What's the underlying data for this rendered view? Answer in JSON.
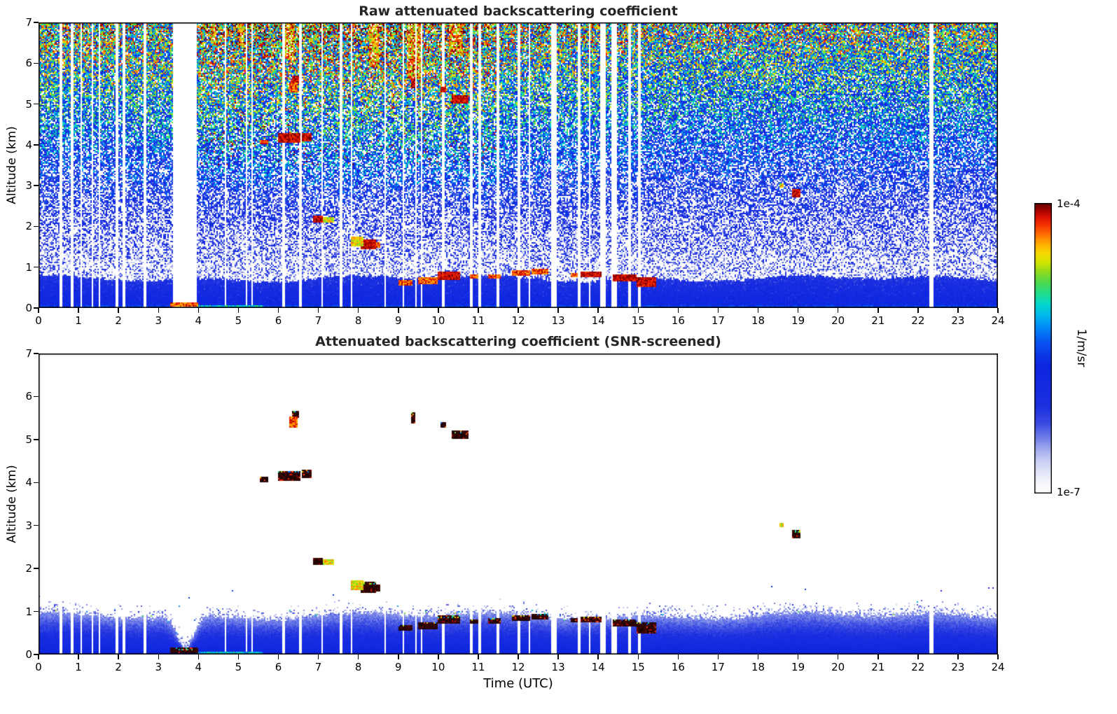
{
  "figure": {
    "background": "#ffffff",
    "title_color": "#262626",
    "text_color": "#000000"
  },
  "chart_data": {
    "type": "heatmap",
    "panels": [
      {
        "title": "Raw attenuated backscattering coefficient",
        "screened": false
      },
      {
        "title": "Attenuated backscattering coefficient (SNR-screened)",
        "screened": true
      }
    ],
    "x": {
      "label": "Time (UTC)",
      "range": [
        0,
        24
      ],
      "ticks": [
        0,
        1,
        2,
        3,
        4,
        5,
        6,
        7,
        8,
        9,
        10,
        11,
        12,
        13,
        14,
        15,
        16,
        17,
        18,
        19,
        20,
        21,
        22,
        23,
        24
      ]
    },
    "y": {
      "label": "Altitude (km)",
      "range": [
        0,
        7
      ],
      "ticks": [
        0,
        1,
        2,
        3,
        4,
        5,
        6,
        7
      ]
    },
    "colorbar": {
      "label": "1/m/sr",
      "scale": "log",
      "vmin_label": "1e-7",
      "vmax_label": "1e-4",
      "stops": [
        [
          0,
          "#ffffff"
        ],
        [
          0.03,
          "#f7f8fd"
        ],
        [
          0.07,
          "#e4e7f8"
        ],
        [
          0.11,
          "#cad0f4"
        ],
        [
          0.15,
          "#a5adee"
        ],
        [
          0.19,
          "#7280e8"
        ],
        [
          0.24,
          "#3b4ce2"
        ],
        [
          0.3,
          "#1c30e0"
        ],
        [
          0.44,
          "#0c25e0"
        ],
        [
          0.52,
          "#0a52f0"
        ],
        [
          0.57,
          "#0088f8"
        ],
        [
          0.61,
          "#00b5f0"
        ],
        [
          0.65,
          "#00d8d0"
        ],
        [
          0.69,
          "#23dc8a"
        ],
        [
          0.73,
          "#53d84a"
        ],
        [
          0.77,
          "#9bde18"
        ],
        [
          0.8,
          "#d9e400"
        ],
        [
          0.83,
          "#f8d800"
        ],
        [
          0.86,
          "#ffab00"
        ],
        [
          0.89,
          "#ff7300"
        ],
        [
          0.92,
          "#f83c00"
        ],
        [
          0.95,
          "#df1200"
        ],
        [
          0.975,
          "#a80400"
        ],
        [
          1,
          "#620000"
        ]
      ]
    },
    "boundary_layer": {
      "raw_top_km": 0.72,
      "screened_top_km": 0.9,
      "dip": {
        "t_center": 3.68,
        "depth_km": 0.72,
        "width_h": 0.3
      }
    },
    "cloud_features": [
      {
        "t0": 5.55,
        "t1": 5.75,
        "z0": 4.02,
        "z1": 4.12,
        "p": "hot",
        "s": "d"
      },
      {
        "t0": 5.98,
        "t1": 6.55,
        "z0": 4.05,
        "z1": 4.28,
        "p": "dark",
        "s": "d"
      },
      {
        "t0": 6.6,
        "t1": 6.82,
        "z0": 4.1,
        "z1": 4.3,
        "p": "dark",
        "s": "d"
      },
      {
        "t0": 6.28,
        "t1": 6.48,
        "z0": 5.28,
        "z1": 5.52,
        "p": "hot",
        "s": "c"
      },
      {
        "t0": 6.33,
        "t1": 6.52,
        "z0": 5.5,
        "z1": 5.68,
        "p": "dark",
        "s": "d"
      },
      {
        "t0": 6.88,
        "t1": 7.12,
        "z0": 2.08,
        "z1": 2.26,
        "p": "dark",
        "s": "d"
      },
      {
        "t0": 7.12,
        "t1": 7.4,
        "z0": 2.1,
        "z1": 2.22,
        "p": "warm",
        "s": "c"
      },
      {
        "t0": 7.82,
        "t1": 8.12,
        "z0": 1.5,
        "z1": 1.74,
        "p": "warm",
        "s": "c"
      },
      {
        "t0": 8.05,
        "t1": 8.45,
        "z0": 1.44,
        "z1": 1.68,
        "p": "dark",
        "s": "d"
      },
      {
        "t0": 8.3,
        "t1": 8.56,
        "z0": 1.48,
        "z1": 1.62,
        "p": "hot",
        "s": "d"
      },
      {
        "t0": 9.32,
        "t1": 9.42,
        "z0": 5.38,
        "z1": 5.62,
        "p": "dark",
        "s": "d"
      },
      {
        "t0": 10.05,
        "t1": 10.2,
        "z0": 5.28,
        "z1": 5.42,
        "p": "dark",
        "s": "d"
      },
      {
        "t0": 10.32,
        "t1": 10.75,
        "z0": 5.0,
        "z1": 5.22,
        "p": "dark",
        "s": "d"
      },
      {
        "t0": 18.55,
        "t1": 18.64,
        "z0": 2.96,
        "z1": 3.06,
        "p": "warm",
        "s": "c"
      },
      {
        "t0": 18.85,
        "t1": 19.06,
        "z0": 2.7,
        "z1": 2.9,
        "p": "dark",
        "s": "d"
      },
      {
        "t0": 3.28,
        "t1": 4.0,
        "z0": 0.02,
        "z1": 0.15,
        "p": "hot",
        "s": "d"
      },
      {
        "t0": 4.0,
        "t1": 5.6,
        "z0": 0.0,
        "z1": 0.08,
        "p": "green",
        "s": "c"
      },
      {
        "t0": 9.0,
        "t1": 9.35,
        "z0": 0.55,
        "z1": 0.68,
        "p": "hot",
        "s": "d"
      },
      {
        "t0": 9.5,
        "t1": 10.0,
        "z0": 0.6,
        "z1": 0.74,
        "p": "hot",
        "s": "d"
      },
      {
        "t0": 10.0,
        "t1": 10.55,
        "z0": 0.7,
        "z1": 0.9,
        "p": "dark",
        "s": "d"
      },
      {
        "t0": 10.8,
        "t1": 11.0,
        "z0": 0.72,
        "z1": 0.82,
        "p": "hot",
        "s": "d"
      },
      {
        "t0": 11.25,
        "t1": 11.55,
        "z0": 0.72,
        "z1": 0.84,
        "p": "hot",
        "s": "d"
      },
      {
        "t0": 11.85,
        "t1": 12.3,
        "z0": 0.78,
        "z1": 0.92,
        "p": "hot",
        "s": "d"
      },
      {
        "t0": 12.35,
        "t1": 12.75,
        "z0": 0.82,
        "z1": 0.95,
        "p": "hot",
        "s": "d"
      },
      {
        "t0": 13.3,
        "t1": 13.5,
        "z0": 0.74,
        "z1": 0.85,
        "p": "hot",
        "s": "d"
      },
      {
        "t0": 13.55,
        "t1": 14.08,
        "z0": 0.74,
        "z1": 0.88,
        "p": "dark",
        "s": "d"
      },
      {
        "t0": 14.35,
        "t1": 14.95,
        "z0": 0.66,
        "z1": 0.82,
        "p": "dark",
        "s": "d"
      },
      {
        "t0": 14.95,
        "t1": 15.45,
        "z0": 0.5,
        "z1": 0.74,
        "p": "dark",
        "s": "d"
      }
    ],
    "hot_streaks": [
      {
        "t0": 4.3,
        "t1": 4.45,
        "z0": 6.5,
        "z1": 7
      },
      {
        "t0": 5.0,
        "t1": 5.15,
        "z0": 6.4,
        "z1": 7
      },
      {
        "t0": 6.18,
        "t1": 6.42,
        "z0": 6.1,
        "z1": 7
      },
      {
        "t0": 8.28,
        "t1": 8.52,
        "z0": 5.9,
        "z1": 7
      },
      {
        "t0": 9.2,
        "t1": 9.55,
        "z0": 5.6,
        "z1": 7
      },
      {
        "t0": 10.25,
        "t1": 10.62,
        "z0": 6.2,
        "z1": 7
      }
    ],
    "data_gaps": [
      {
        "t": 0.55,
        "w": 0.06
      },
      {
        "t": 0.83,
        "w": 0.06
      },
      {
        "t": 1.07,
        "w": 0.06
      },
      {
        "t": 1.35,
        "w": 0.05
      },
      {
        "t": 1.53,
        "w": 0.05
      },
      {
        "t": 1.95,
        "w": 0.06
      },
      {
        "t": 2.13,
        "w": 0.05
      },
      {
        "t": 2.68,
        "w": 0.07
      },
      {
        "t": 3.66,
        "w": 0.62,
        "full": true
      },
      {
        "t": 4.67,
        "w": 0.05
      },
      {
        "t": 5.2,
        "w": 0.05
      },
      {
        "t": 5.35,
        "w": 0.05
      },
      {
        "t": 6.12,
        "w": 0.06
      },
      {
        "t": 6.55,
        "w": 0.05
      },
      {
        "t": 7.1,
        "w": 0.05
      },
      {
        "t": 7.58,
        "w": 0.06
      },
      {
        "t": 7.83,
        "w": 0.05
      },
      {
        "t": 8.67,
        "w": 0.06
      },
      {
        "t": 9.13,
        "w": 0.05
      },
      {
        "t": 9.45,
        "w": 0.04
      },
      {
        "t": 9.58,
        "w": 0.05
      },
      {
        "t": 10.13,
        "w": 0.05
      },
      {
        "t": 10.82,
        "w": 0.06
      },
      {
        "t": 11.03,
        "w": 0.05
      },
      {
        "t": 11.48,
        "w": 0.06
      },
      {
        "t": 12.03,
        "w": 0.06
      },
      {
        "t": 12.28,
        "w": 0.05
      },
      {
        "t": 12.88,
        "w": 0.14
      },
      {
        "t": 13.52,
        "w": 0.06
      },
      {
        "t": 13.78,
        "w": 0.05
      },
      {
        "t": 14.12,
        "w": 0.17
      },
      {
        "t": 14.4,
        "w": 0.12
      },
      {
        "t": 14.78,
        "w": 0.05
      },
      {
        "t": 15.03,
        "w": 0.05
      },
      {
        "t": 22.33,
        "w": 0.1
      }
    ]
  }
}
